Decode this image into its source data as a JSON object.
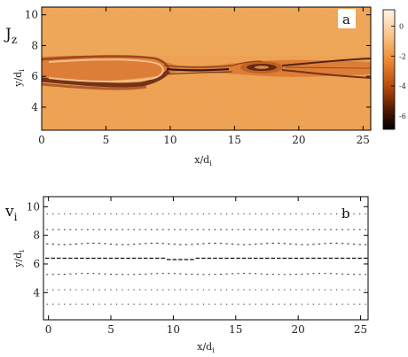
{
  "figure": {
    "panel_a": {
      "quantity": "J",
      "quantity_sub": "z",
      "letter": "a",
      "xlabel": "x/d",
      "xlabel_sub": "i",
      "ylabel": "y/d",
      "ylabel_sub": "i",
      "xticks": [
        "0",
        "5",
        "10",
        "15",
        "20",
        "25"
      ],
      "yticks": [
        "4",
        "6",
        "8",
        "10"
      ],
      "colorbar": {
        "ticks": [
          "0",
          "-2",
          "-4",
          "-6"
        ],
        "colors": [
          "#fff4e6",
          "#f9c98e",
          "#ef8a32",
          "#b4470a",
          "#4a1604",
          "#000000"
        ]
      }
    },
    "panel_b": {
      "quantity": "v",
      "quantity_sub": "i",
      "letter": "b",
      "xlabel": "x/d",
      "xlabel_sub": "i",
      "ylabel": "y/d",
      "ylabel_sub": "i",
      "xticks": [
        "0",
        "5",
        "10",
        "15",
        "20",
        "25"
      ],
      "yticks": [
        "4",
        "6",
        "8",
        "10"
      ]
    }
  }
}
